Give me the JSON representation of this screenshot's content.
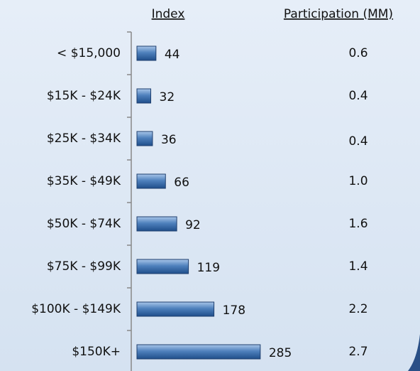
{
  "chart_data": {
    "type": "bar",
    "orientation": "horizontal",
    "categories": [
      "< $15,000",
      "$15K - $24K",
      "$25K - $34K",
      "$35K - $49K",
      "$50K - $74K",
      "$75K - $99K",
      "$100K - $149K",
      "$150K+"
    ],
    "series": [
      {
        "name": "Index",
        "color": "#4f81bd",
        "values": [
          44,
          32,
          36,
          66,
          92,
          119,
          178,
          285
        ]
      }
    ],
    "participation": {
      "name": "Participation (MM)",
      "values": [
        0.6,
        0.4,
        0.4,
        1.0,
        1.6,
        1.4,
        2.2,
        2.7
      ],
      "value_labels": [
        "0.6",
        "0.4",
        "0.4",
        "1.0",
        "1.6",
        "1.4",
        "2.2",
        "2.7"
      ]
    },
    "xlim": [
      0,
      300
    ]
  }
}
